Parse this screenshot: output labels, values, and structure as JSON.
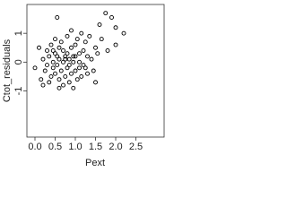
{
  "chart_data": {
    "type": "scatter",
    "x_label": "Pext",
    "y_label": "Ctot_residuals",
    "xlim": [
      -0.2,
      3.2
    ],
    "ylim": [
      -2.6,
      2.0
    ],
    "xticks": [
      {
        "value": 0,
        "label": "0.0"
      },
      0.5,
      {
        "value": 1,
        "label": "1.0"
      },
      1.5,
      {
        "value": 2,
        "label": "2.0"
      },
      2.5
    ],
    "yticks": [
      -1,
      0,
      1
    ],
    "color": "#000000",
    "x": [
      0.0,
      0.1,
      0.15,
      0.2,
      0.25,
      0.3,
      0.3,
      0.35,
      0.4,
      0.4,
      0.45,
      0.45,
      0.5,
      0.5,
      0.5,
      0.55,
      0.55,
      0.55,
      0.6,
      0.6,
      0.6,
      0.65,
      0.65,
      0.7,
      0.7,
      0.7,
      0.75,
      0.75,
      0.8,
      0.8,
      0.8,
      0.85,
      0.85,
      0.9,
      0.9,
      0.9,
      0.95,
      0.95,
      1.0,
      1.0,
      1.0,
      1.05,
      1.05,
      1.1,
      1.1,
      1.15,
      1.15,
      1.2,
      1.2,
      1.25,
      1.3,
      1.3,
      1.35,
      1.4,
      1.45,
      1.5,
      1.5,
      1.55,
      1.6,
      1.65,
      1.75,
      1.8,
      1.9,
      2.0,
      2.0,
      2.2,
      0.35,
      0.6,
      0.85,
      1.1,
      0.95,
      0.75,
      0.45,
      1.25,
      0.2
    ],
    "y": [
      -0.2,
      0.5,
      -0.6,
      0.1,
      -0.3,
      0.4,
      -0.1,
      0.2,
      -0.5,
      0.6,
      0.0,
      -0.2,
      0.3,
      -0.4,
      0.8,
      1.55,
      -0.1,
      0.2,
      -0.6,
      0.5,
      0.1,
      -0.3,
      0.7,
      0.0,
      -0.8,
      0.4,
      -0.5,
      0.2,
      0.9,
      -0.2,
      0.3,
      -0.7,
      0.1,
      0.5,
      -0.4,
      1.1,
      0.0,
      -0.9,
      0.6,
      -0.3,
      0.2,
      -0.6,
      0.8,
      0.3,
      -0.2,
      1.0,
      -0.5,
      0.4,
      -0.1,
      0.7,
      -0.4,
      0.2,
      0.9,
      0.1,
      -0.3,
      0.5,
      -0.7,
      0.3,
      1.3,
      0.8,
      1.7,
      0.4,
      1.55,
      1.2,
      0.6,
      1.0,
      -0.7,
      -0.9,
      -0.1,
      0.0,
      0.2,
      0.1,
      0.4,
      -0.2,
      -0.8
    ]
  }
}
